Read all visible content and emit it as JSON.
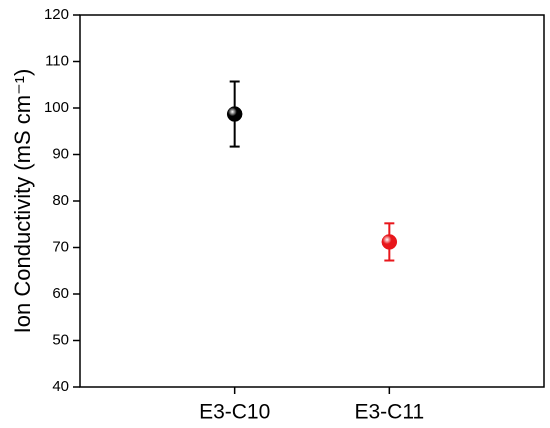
{
  "chart_data": {
    "type": "errorbar",
    "ylabel": "Ion Conductivity (mS cm⁻¹)",
    "categories": [
      "E3-C10",
      "E3-C11"
    ],
    "values": [
      98.7,
      71.2
    ],
    "errors": [
      7,
      4
    ],
    "colors": [
      "#000000",
      "#e8161b"
    ],
    "ylim": [
      40,
      120
    ],
    "yticks": [
      40,
      50,
      60,
      70,
      80,
      90,
      100,
      110,
      120
    ]
  }
}
